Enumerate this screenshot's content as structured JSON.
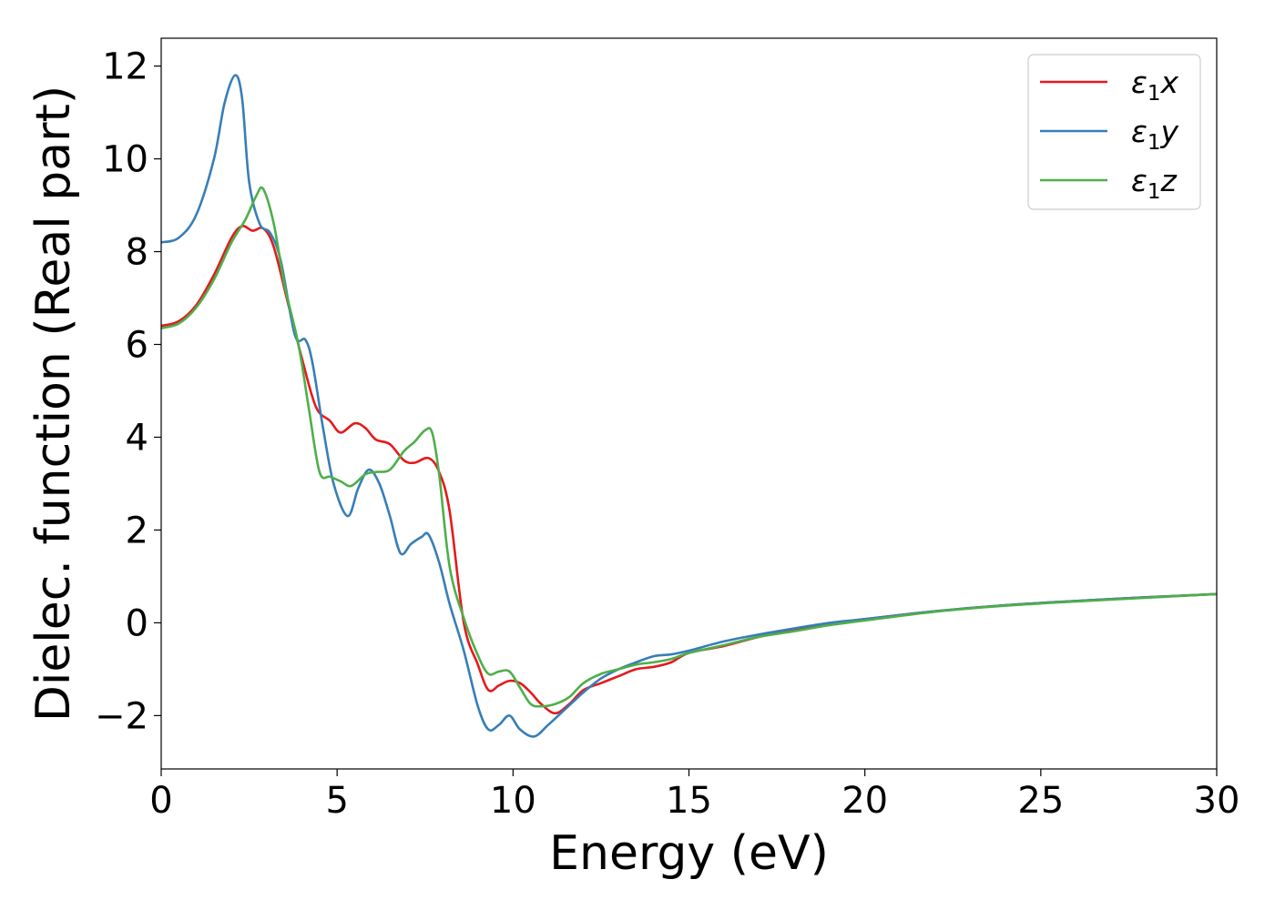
{
  "chart_data": {
    "type": "line",
    "title": "",
    "xlabel": "Energy (eV)",
    "ylabel": "Dielec. function (Real part)",
    "xlim": [
      0,
      30
    ],
    "ylim": [
      -3.15,
      12.6
    ],
    "xticks": [
      0,
      5,
      10,
      15,
      20,
      25,
      30
    ],
    "xtick_labels": [
      "0",
      "5",
      "10",
      "15",
      "20",
      "25",
      "30"
    ],
    "yticks": [
      -2,
      0,
      2,
      4,
      6,
      8,
      10,
      12
    ],
    "ytick_labels": [
      "−2",
      "0",
      "2",
      "4",
      "6",
      "8",
      "10",
      "12"
    ],
    "grid": false,
    "legend_position": "top-right",
    "series": [
      {
        "name": "ε₁x",
        "legend_base": "ε",
        "legend_sub": "1",
        "legend_suffix": "x",
        "color": "#e41a1c",
        "x": [
          0,
          0.5,
          1.0,
          1.5,
          2.0,
          2.3,
          2.6,
          2.9,
          3.2,
          3.6,
          4.0,
          4.4,
          4.8,
          5.1,
          5.5,
          5.8,
          6.1,
          6.5,
          6.9,
          7.2,
          7.6,
          7.9,
          8.2,
          8.6,
          9.0,
          9.3,
          9.6,
          9.9,
          10.2,
          10.5,
          10.8,
          11.2,
          11.6,
          12.0,
          12.5,
          13.0,
          13.5,
          14.0,
          14.5,
          15.0,
          16.0,
          17.0,
          18.0,
          19.0,
          20.0,
          22.0,
          24.0,
          26.0,
          28.0,
          30.0
        ],
        "values": [
          6.4,
          6.5,
          6.85,
          7.5,
          8.3,
          8.55,
          8.45,
          8.5,
          8.1,
          6.9,
          5.7,
          4.65,
          4.35,
          4.1,
          4.3,
          4.2,
          3.95,
          3.85,
          3.5,
          3.45,
          3.55,
          3.25,
          2.4,
          0.0,
          -0.9,
          -1.45,
          -1.35,
          -1.25,
          -1.3,
          -1.5,
          -1.75,
          -1.95,
          -1.75,
          -1.45,
          -1.3,
          -1.15,
          -1.0,
          -0.95,
          -0.85,
          -0.65,
          -0.5,
          -0.3,
          -0.15,
          -0.02,
          0.08,
          0.25,
          0.38,
          0.47,
          0.55,
          0.62
        ]
      },
      {
        "name": "ε₁y",
        "legend_base": "ε",
        "legend_sub": "1",
        "legend_suffix": "y",
        "color": "#377eb8",
        "x": [
          0,
          0.5,
          1.0,
          1.5,
          1.8,
          2.1,
          2.3,
          2.5,
          2.8,
          3.1,
          3.4,
          3.8,
          4.1,
          4.3,
          4.6,
          4.9,
          5.3,
          5.6,
          5.9,
          6.2,
          6.5,
          6.8,
          7.1,
          7.4,
          7.6,
          7.9,
          8.2,
          8.6,
          9.0,
          9.3,
          9.6,
          9.9,
          10.2,
          10.6,
          11.0,
          11.5,
          12.0,
          12.5,
          13.0,
          13.5,
          14.0,
          14.5,
          15.0,
          16.0,
          17.0,
          18.0,
          19.0,
          20.0,
          22.0,
          24.0,
          26.0,
          28.0,
          30.0
        ],
        "values": [
          8.2,
          8.3,
          8.8,
          10.0,
          11.2,
          11.8,
          11.3,
          9.5,
          8.6,
          8.4,
          7.8,
          6.2,
          6.1,
          5.6,
          4.2,
          3.0,
          2.3,
          2.9,
          3.3,
          3.0,
          2.3,
          1.5,
          1.7,
          1.85,
          1.9,
          1.3,
          0.4,
          -0.6,
          -1.8,
          -2.3,
          -2.2,
          -2.0,
          -2.3,
          -2.45,
          -2.2,
          -1.85,
          -1.5,
          -1.2,
          -1.0,
          -0.85,
          -0.72,
          -0.68,
          -0.6,
          -0.4,
          -0.25,
          -0.12,
          0.0,
          0.08,
          0.25,
          0.38,
          0.47,
          0.55,
          0.62
        ]
      },
      {
        "name": "ε₁z",
        "legend_base": "ε",
        "legend_sub": "1",
        "legend_suffix": "z",
        "color": "#4daf4a",
        "x": [
          0,
          0.5,
          1.0,
          1.5,
          2.0,
          2.4,
          2.7,
          2.9,
          3.2,
          3.5,
          3.9,
          4.2,
          4.5,
          4.8,
          5.1,
          5.4,
          5.8,
          6.1,
          6.5,
          6.9,
          7.2,
          7.5,
          7.7,
          7.9,
          8.2,
          8.6,
          9.0,
          9.3,
          9.6,
          9.9,
          10.2,
          10.5,
          10.8,
          11.2,
          11.6,
          12.0,
          12.5,
          13.0,
          13.5,
          14.0,
          14.5,
          15.0,
          16.0,
          17.0,
          18.0,
          19.0,
          20.0,
          22.0,
          24.0,
          26.0,
          28.0,
          30.0
        ],
        "values": [
          6.35,
          6.45,
          6.8,
          7.4,
          8.2,
          8.7,
          9.2,
          9.35,
          8.6,
          7.3,
          6.0,
          4.6,
          3.25,
          3.15,
          3.05,
          2.95,
          3.2,
          3.25,
          3.3,
          3.7,
          3.9,
          4.15,
          4.1,
          3.2,
          1.2,
          0.1,
          -0.7,
          -1.1,
          -1.05,
          -1.05,
          -1.4,
          -1.75,
          -1.8,
          -1.75,
          -1.6,
          -1.3,
          -1.1,
          -1.0,
          -0.9,
          -0.85,
          -0.78,
          -0.65,
          -0.48,
          -0.3,
          -0.18,
          -0.05,
          0.05,
          0.24,
          0.37,
          0.46,
          0.54,
          0.62
        ]
      }
    ]
  }
}
